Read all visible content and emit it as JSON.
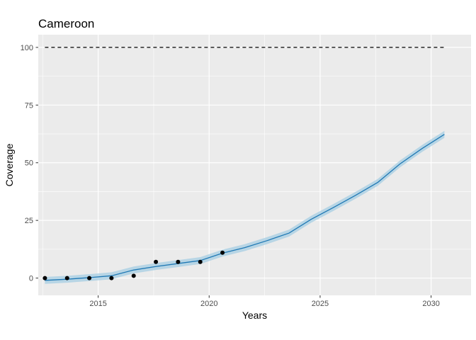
{
  "chart_data": {
    "type": "line",
    "title": "Cameroon",
    "xlabel": "Years",
    "ylabel": "Coverage",
    "xlim": [
      2012.3,
      2031.8
    ],
    "ylim": [
      -7.5,
      105.5
    ],
    "x_ticks": [
      2015,
      2020,
      2025,
      2030
    ],
    "y_ticks": [
      0,
      25,
      50,
      75,
      100
    ],
    "x_tick_labels": [
      "2015",
      "2020",
      "2025",
      "2030"
    ],
    "y_tick_labels": [
      "0",
      "25",
      "50",
      "75",
      "100"
    ],
    "grid": true,
    "legend": "none",
    "reference_line": {
      "x": [
        2012.6,
        2030.6
      ],
      "y": 100,
      "style": "dashed",
      "color": "#000000"
    },
    "observed_points": {
      "x": [
        2012.6,
        2013.6,
        2014.6,
        2015.6,
        2016.6,
        2017.6,
        2018.6,
        2019.6,
        2020.6
      ],
      "y": [
        0,
        0,
        0,
        0,
        1,
        7,
        7,
        7,
        11
      ],
      "color": "#000000"
    },
    "fitted_line": {
      "x": [
        2012.6,
        2013.6,
        2014.6,
        2015.6,
        2016.6,
        2017.6,
        2018.6,
        2019.6,
        2020.6,
        2021.6,
        2022.6,
        2023.6,
        2024.6,
        2025.6,
        2026.6,
        2027.6,
        2028.6,
        2029.6,
        2030.6
      ],
      "y": [
        -1,
        -0.5,
        0.2,
        1,
        3.5,
        5,
        6.3,
        7.6,
        10.8,
        13.2,
        16.2,
        19.5,
        25.5,
        30.6,
        35.9,
        41.5,
        49.5,
        56.2,
        62.3
      ],
      "lower": [
        -2.5,
        -2,
        -1.3,
        -0.5,
        2,
        3.5,
        4.8,
        6.1,
        9.3,
        11.7,
        14.7,
        18,
        24,
        29.1,
        34.4,
        40,
        48,
        54.7,
        60.8
      ],
      "upper": [
        0.5,
        1,
        1.7,
        2.5,
        5,
        6.5,
        7.8,
        9.1,
        12.3,
        14.7,
        17.7,
        21,
        27,
        32.1,
        37.4,
        43,
        51,
        57.7,
        63.8
      ],
      "color": "#1f78b4",
      "band_color": "#a6cee3"
    },
    "panel_color": "#ebebeb",
    "grid_color": "#ffffff"
  }
}
